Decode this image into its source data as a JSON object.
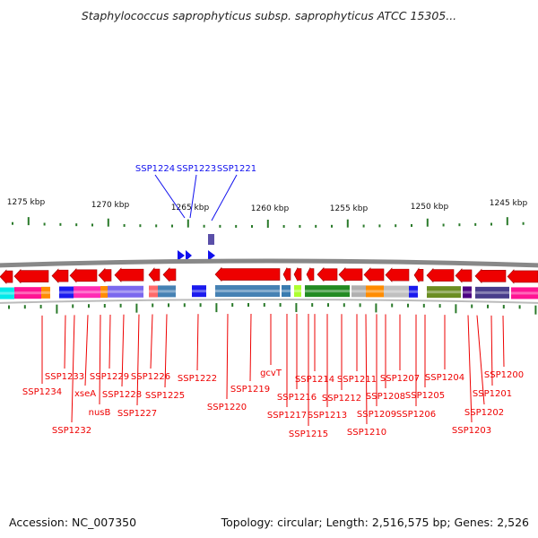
{
  "title": "Staphylococcus saprophyticus subsp. saprophyticus ATCC 15305...",
  "footer": {
    "accession": "Accession: NC_007350",
    "topology": "Topology: circular; Length: 2,516,575 bp; Genes: 2,526"
  },
  "colors": {
    "forward_gene": "#1010ee",
    "reverse_gene": "#ee0000",
    "tick": "#2a7a2a",
    "backbone": "#888888"
  },
  "scale_labels": [
    "1275 kbp",
    "1270 kbp",
    "1265 kbp",
    "1260 kbp",
    "1255 kbp",
    "1250 kbp",
    "1245 kbp"
  ],
  "upper_gene_labels": [
    "SSP1224",
    "SSP1223",
    "SSP1221"
  ],
  "lower_gene_labels": [
    "SSP1234",
    "SSP1233",
    "SSP1232",
    "xseA",
    "nusB",
    "SSP1229",
    "SSP1228",
    "SSP1227",
    "SSP1226",
    "SSP1225",
    "SSP1222",
    "SSP1220",
    "SSP1219",
    "gcvT",
    "SSP1217",
    "SSP1216",
    "SSP1215",
    "SSP1214",
    "SSP1213",
    "SSP1212",
    "SSP1211",
    "SSP1210",
    "SSP1209",
    "SSP1208",
    "SSP1207",
    "SSP1206",
    "SSP1205",
    "SSP1204",
    "SSP1203",
    "SSP1202",
    "SSP1201",
    "SSP1200"
  ]
}
